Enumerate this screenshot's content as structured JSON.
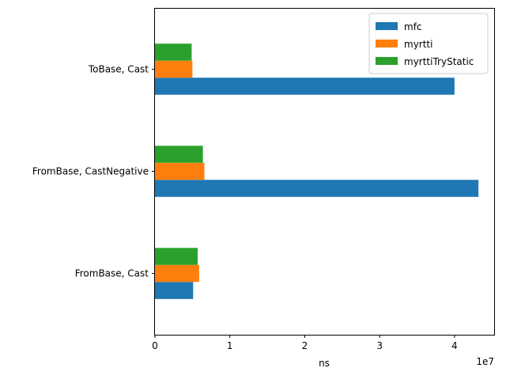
{
  "chart_data": {
    "type": "bar",
    "orientation": "horizontal",
    "categories": [
      "FromBase, Cast",
      "FromBase, CastNegative",
      "ToBase, Cast"
    ],
    "series": [
      {
        "name": "mfc",
        "color": "#1f77b4",
        "values": [
          5100000,
          43200000,
          40000000
        ]
      },
      {
        "name": "myrtti",
        "color": "#ff7f0e",
        "values": [
          5900000,
          6600000,
          5000000
        ]
      },
      {
        "name": "myrttiTryStatic",
        "color": "#2ca02c",
        "values": [
          5700000,
          6400000,
          4900000
        ]
      }
    ],
    "xlabel": "ns",
    "x_ticks": [
      0,
      10000000,
      20000000,
      30000000,
      40000000
    ],
    "x_tick_labels": [
      "0",
      "1",
      "2",
      "3",
      "4"
    ],
    "x_offset_label": "1e7",
    "xlim": [
      0,
      45400000
    ],
    "grid": false,
    "legend_position": "top-right"
  }
}
